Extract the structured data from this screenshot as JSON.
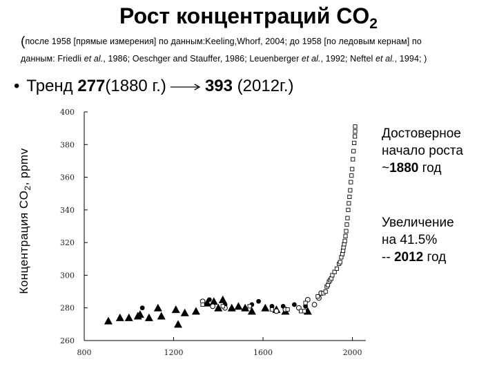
{
  "title": {
    "main": "Рост концентраций CO",
    "sub": "2"
  },
  "subtitle": {
    "line1": "после 1958 [прямые измерения] по данным:Keeling,Whorf, 2004; до 1958 [по ледовым кернам] по",
    "line2_parts": [
      "данным: Friedli ",
      "et al.",
      ", 1986; Oeschger and Stauffer, 1986; Leuenberger ",
      "et al.",
      ", 1992; Neftel ",
      "et al.",
      ", 1994; )"
    ]
  },
  "trend": {
    "prefix": "Тренд ",
    "v1": "277",
    "t1": "(1880 г.)",
    "v2": "393",
    "t2": " (2012г.)"
  },
  "ylabel": {
    "main": "Концентрация CO",
    "sub": "2",
    "unit": ", ppmv"
  },
  "notes": {
    "n1_line1": "Достоверное",
    "n1_line2": "начало роста",
    "n1_prefix": "~",
    "n1_bold": "1880",
    "n1_suffix": " год",
    "n2_line1": "Увеличение",
    "n2_line2": "на 41.5%",
    "n2_prefix": "-- ",
    "n2_bold": "2012",
    "n2_suffix": " год"
  },
  "chart_data": {
    "type": "scatter",
    "title": "Рост концентраций CO2",
    "xlabel": "",
    "ylabel": "Концентрация CO2, ppmv",
    "xlim": [
      800,
      2060
    ],
    "ylim": [
      260,
      400
    ],
    "x_ticks": [
      800,
      1200,
      1600,
      2000
    ],
    "y_ticks": [
      260,
      280,
      300,
      320,
      340,
      360,
      380,
      400
    ],
    "grid": false,
    "series": [
      {
        "marker": "triangle",
        "points": [
          [
            908,
            272
          ],
          [
            960,
            274
          ],
          [
            1000,
            274
          ],
          [
            1040,
            275
          ],
          [
            1050,
            276
          ],
          [
            1090,
            274
          ],
          [
            1130,
            280
          ],
          [
            1145,
            275
          ],
          [
            1210,
            279
          ],
          [
            1220,
            270
          ],
          [
            1250,
            277
          ],
          [
            1300,
            278
          ],
          [
            1350,
            283
          ],
          [
            1380,
            284
          ],
          [
            1400,
            280
          ],
          [
            1420,
            285
          ],
          [
            1460,
            280
          ],
          [
            1490,
            281
          ],
          [
            1520,
            280
          ],
          [
            1550,
            278
          ],
          [
            1610,
            280
          ],
          [
            1660,
            279
          ],
          [
            1700,
            278
          ],
          [
            1800,
            278
          ]
        ]
      },
      {
        "marker": "dot",
        "points": [
          [
            1060,
            280
          ],
          [
            1360,
            285
          ],
          [
            1430,
            282
          ],
          [
            1550,
            282
          ],
          [
            1580,
            284
          ],
          [
            1640,
            281
          ],
          [
            1690,
            281
          ],
          [
            1740,
            282
          ],
          [
            1790,
            281
          ]
        ]
      },
      {
        "marker": "circle-open",
        "points": [
          [
            1330,
            284
          ],
          [
            1375,
            281
          ],
          [
            1430,
            280
          ],
          [
            1660,
            278
          ],
          [
            1700,
            279
          ],
          [
            1760,
            280
          ],
          [
            1800,
            285
          ],
          [
            1830,
            282
          ],
          [
            1850,
            286
          ],
          [
            1860,
            289
          ]
        ]
      },
      {
        "marker": "square-open",
        "points": [
          [
            1330,
            282
          ],
          [
            1420,
            281
          ],
          [
            1540,
            281
          ],
          [
            1640,
            279
          ],
          [
            1710,
            279
          ],
          [
            1770,
            278
          ],
          [
            1785,
            278
          ],
          [
            1790,
            283
          ],
          [
            1845,
            287
          ],
          [
            1870,
            289
          ],
          [
            1880,
            290
          ],
          [
            1885,
            293
          ],
          [
            1890,
            294
          ],
          [
            1895,
            296
          ],
          [
            1900,
            297
          ],
          [
            1905,
            298
          ],
          [
            1910,
            300
          ],
          [
            1920,
            302
          ],
          [
            1930,
            304
          ],
          [
            1940,
            307
          ],
          [
            1945,
            308
          ],
          [
            1950,
            311
          ],
          [
            1955,
            313
          ],
          [
            1958,
            315
          ],
          [
            1960,
            317
          ],
          [
            1963,
            319
          ],
          [
            1966,
            321
          ],
          [
            1969,
            324
          ],
          [
            1972,
            327
          ],
          [
            1975,
            331
          ],
          [
            1978,
            335
          ],
          [
            1981,
            340
          ],
          [
            1984,
            344
          ],
          [
            1987,
            348
          ],
          [
            1990,
            352
          ],
          [
            1993,
            357
          ],
          [
            1996,
            361
          ],
          [
            1999,
            365
          ],
          [
            2002,
            371
          ],
          [
            2005,
            376
          ],
          [
            2008,
            381
          ],
          [
            2011,
            385
          ],
          [
            2012,
            388
          ],
          [
            2012,
            391
          ]
        ]
      }
    ]
  }
}
